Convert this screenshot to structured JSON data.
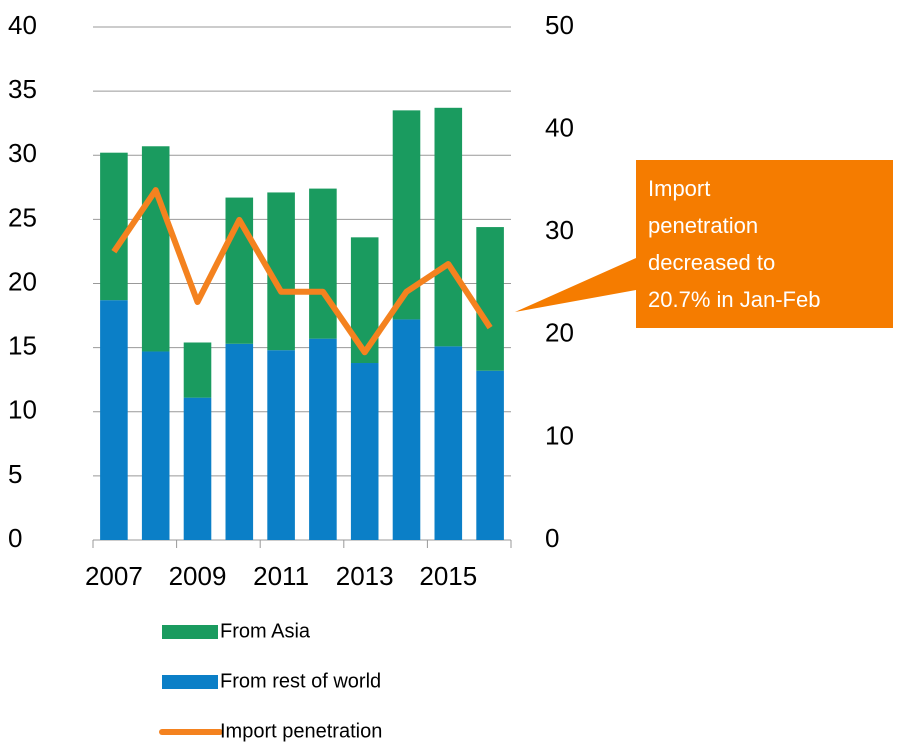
{
  "chart_data": {
    "type": "bar",
    "categories": [
      "2007",
      null,
      "2009",
      null,
      "2011",
      null,
      "2013",
      null,
      "2015",
      null
    ],
    "series": [
      {
        "name": "From rest of world",
        "color": "#0b7fc7",
        "values": [
          18.7,
          14.7,
          11.1,
          15.3,
          14.8,
          15.7,
          13.8,
          17.2,
          15.1,
          13.2
        ]
      },
      {
        "name": "From Asia",
        "color": "#1a9b5f",
        "values": [
          11.5,
          16.0,
          4.3,
          11.4,
          12.3,
          11.7,
          9.8,
          16.3,
          18.6,
          11.2
        ]
      },
      {
        "name": "Import penetration",
        "type": "line",
        "axis": "y2",
        "color": "#f4821f",
        "values": [
          28.1,
          34.1,
          23.2,
          31.2,
          24.2,
          24.2,
          18.3,
          24.2,
          26.9,
          20.7
        ]
      }
    ],
    "stacked": true,
    "ylim": [
      0,
      40
    ],
    "yticks": [
      0,
      5,
      10,
      15,
      20,
      25,
      30,
      35,
      40
    ],
    "y2lim": [
      0,
      50
    ],
    "y2ticks": [
      0,
      10,
      20,
      30,
      40,
      50
    ],
    "grid": true,
    "annotation": {
      "lines": [
        "Import",
        "penetration",
        "decreased to",
        "20.7% in Jan-Feb"
      ],
      "color": "#f57c00"
    }
  }
}
